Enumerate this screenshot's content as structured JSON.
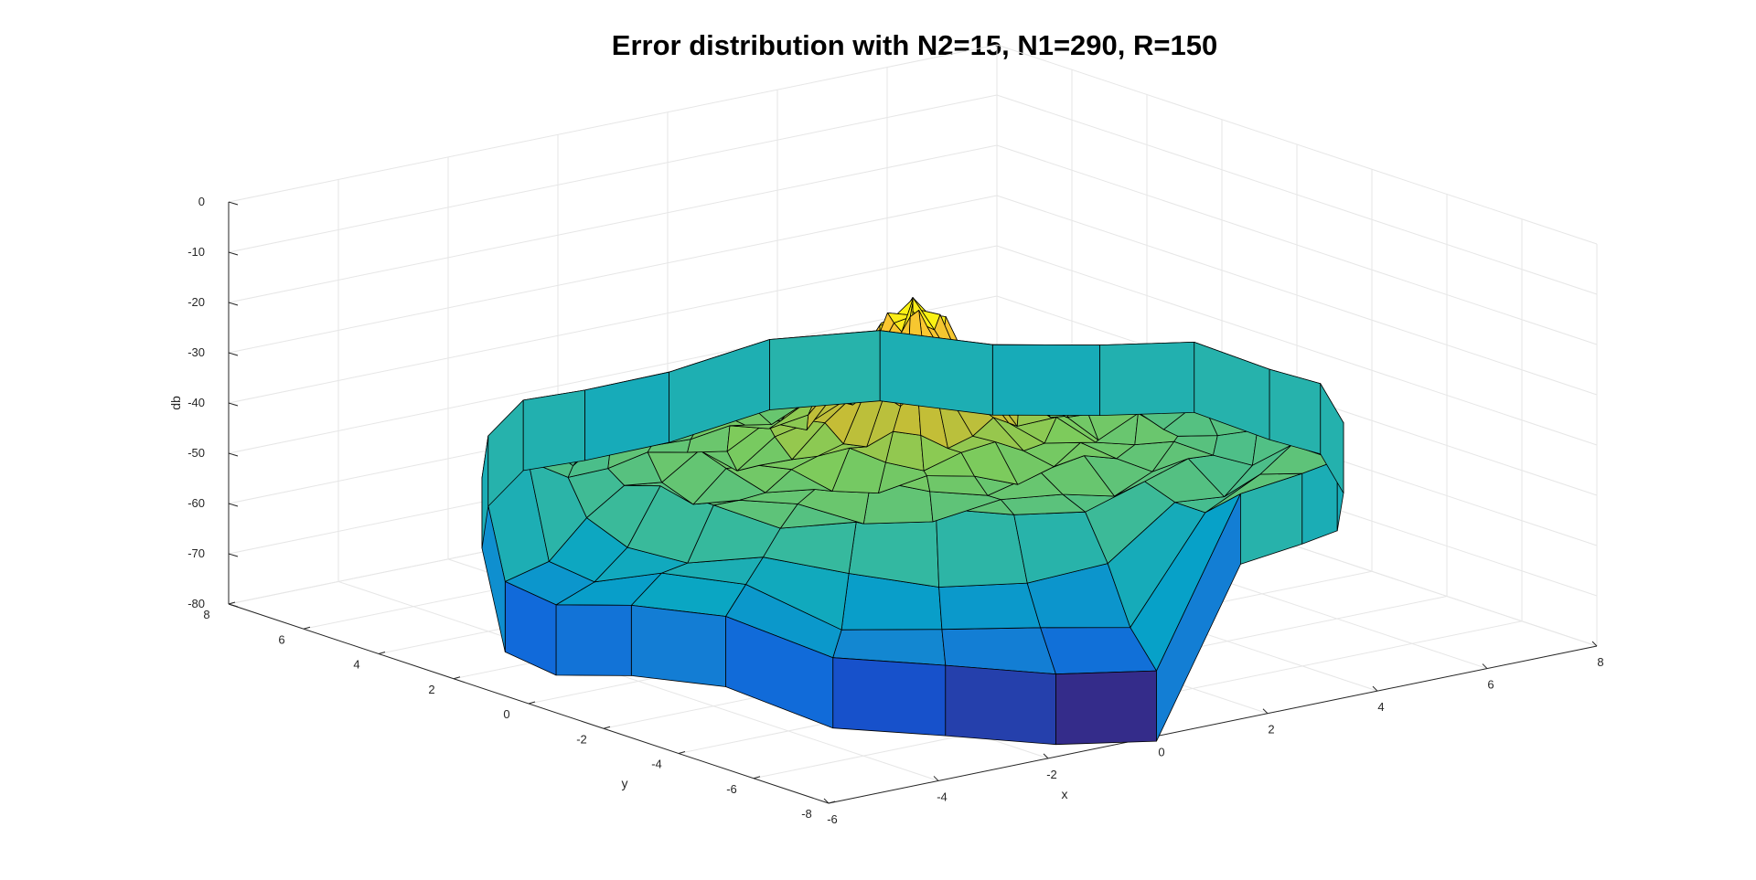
{
  "chart_data": {
    "type": "surface3d",
    "title": "Error distribution with N2=15, N1=290, R=150",
    "xlabel": "x",
    "ylabel": "y",
    "zlabel": "db",
    "xlim": [
      -6,
      8
    ],
    "ylim": [
      -8,
      8
    ],
    "zlim": [
      -80,
      0
    ],
    "x_ticks": [
      "-6",
      "-4",
      "-2",
      "0",
      "2",
      "4",
      "6",
      "8"
    ],
    "y_ticks": [
      "-8",
      "-6",
      "-4",
      "-2",
      "0",
      "2",
      "4",
      "6",
      "8"
    ],
    "z_ticks": [
      "0",
      "-10",
      "-20",
      "-30",
      "-40",
      "-50",
      "-60",
      "-70",
      "-80"
    ],
    "grid": true,
    "colormap": "parula",
    "surface": {
      "center": [
        1,
        0
      ],
      "peak_db": -17,
      "outer_radius": 6.5,
      "rim_db": -44,
      "radial_samples": [
        0,
        0.5,
        1.0,
        1.6,
        2.2,
        2.8,
        3.4,
        4.0,
        4.6,
        5.2,
        5.8,
        6.5
      ],
      "radial_db": [
        -17,
        -21,
        -31,
        -38,
        -40,
        -43,
        -42,
        -45,
        -44,
        -47,
        -45,
        -44
      ],
      "dips": [
        {
          "angle_deg": 200,
          "db": -80
        },
        {
          "angle_deg": 215,
          "db": -77
        },
        {
          "angle_deg": 228,
          "db": -78
        },
        {
          "angle_deg": 242,
          "db": -75
        },
        {
          "angle_deg": 256,
          "db": -74
        },
        {
          "angle_deg": 270,
          "db": -73
        },
        {
          "angle_deg": 168,
          "db": -72
        },
        {
          "angle_deg": 182,
          "db": -68
        }
      ]
    }
  },
  "colors": {
    "low": "#352a87",
    "mid_low": "#0f5cdd",
    "mid": "#12b1c7",
    "mid_high": "#7bbd68",
    "high": "#f9fb0e"
  }
}
